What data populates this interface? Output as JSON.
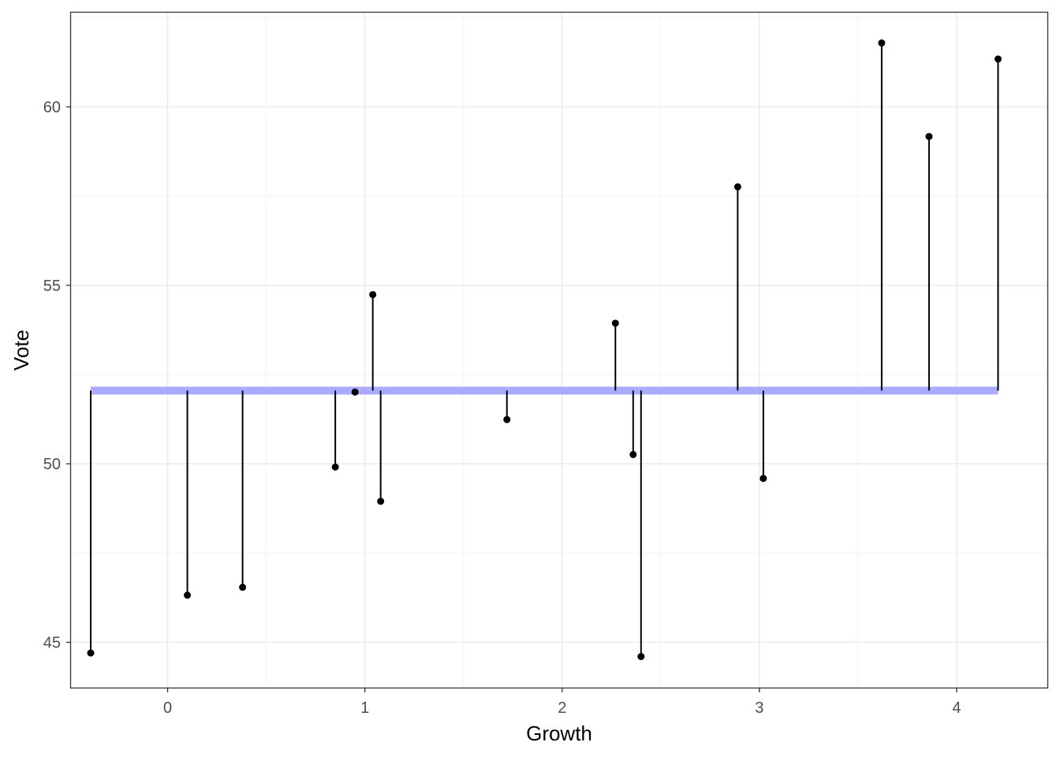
{
  "chart_data": {
    "type": "scatter",
    "title": "",
    "xlabel": "Growth",
    "ylabel": "Vote",
    "xlim": [
      -0.49,
      4.46
    ],
    "ylim": [
      43.73,
      62.64
    ],
    "x_ticks": [
      0,
      1,
      2,
      3,
      4
    ],
    "x_tick_labels": [
      "0",
      "1",
      "2",
      "3",
      "4"
    ],
    "y_ticks": [
      45,
      50,
      55,
      60
    ],
    "y_tick_labels": [
      "45",
      "50",
      "55",
      "60"
    ],
    "grid": true,
    "legend": "none",
    "mean_line": {
      "y": 52.05,
      "x_start": -0.39,
      "x_end": 4.21,
      "color": "#aaaaff"
    },
    "points": [
      {
        "x": -0.39,
        "y": 44.7
      },
      {
        "x": 0.1,
        "y": 46.32
      },
      {
        "x": 0.38,
        "y": 46.54
      },
      {
        "x": 0.85,
        "y": 49.91
      },
      {
        "x": 0.95,
        "y": 52.01
      },
      {
        "x": 1.04,
        "y": 54.74
      },
      {
        "x": 1.08,
        "y": 48.95
      },
      {
        "x": 1.72,
        "y": 51.24
      },
      {
        "x": 2.27,
        "y": 53.94
      },
      {
        "x": 2.36,
        "y": 50.26
      },
      {
        "x": 2.4,
        "y": 44.6
      },
      {
        "x": 2.89,
        "y": 57.76
      },
      {
        "x": 3.02,
        "y": 49.59
      },
      {
        "x": 3.62,
        "y": 61.79
      },
      {
        "x": 3.86,
        "y": 59.17
      },
      {
        "x": 4.21,
        "y": 61.34
      }
    ]
  },
  "colors": {
    "background": "#ffffff",
    "panel_border": "#333333",
    "grid_major": "#ebebeb",
    "grid_minor": "#f3f3f3",
    "point": "#000000",
    "segment": "#000000",
    "mean_line": "#aaaaff"
  }
}
